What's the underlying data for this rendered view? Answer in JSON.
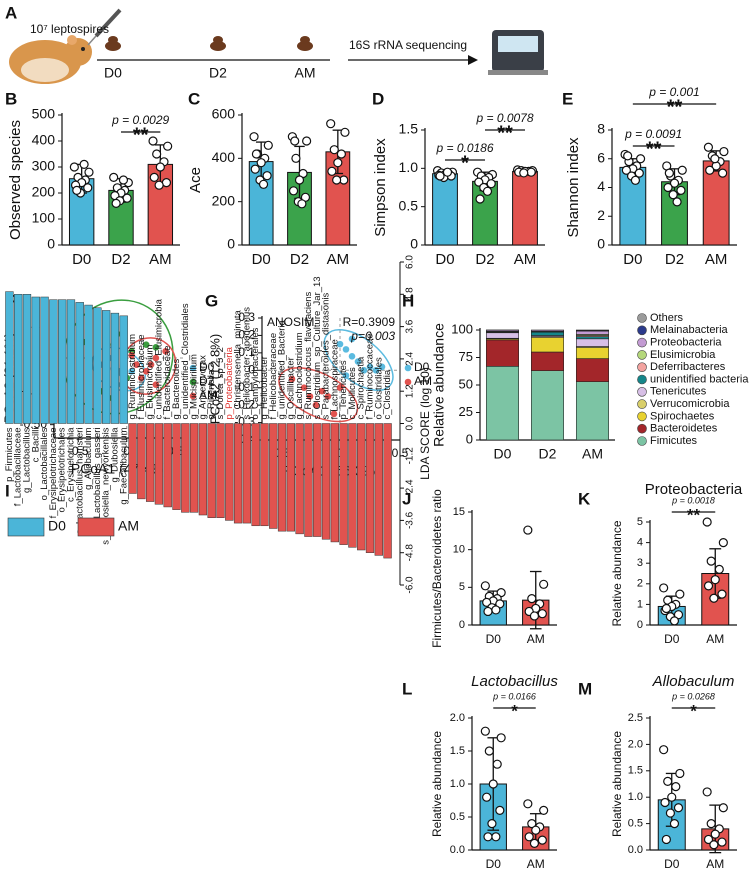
{
  "panel_a": {
    "letter": "A",
    "dose": "10⁷ leptospires",
    "timepoints": [
      "D0",
      "D2",
      "AM"
    ],
    "sequencing": "16S rRNA sequencing"
  },
  "chart_data": [
    {
      "type": "bar",
      "panel": "B",
      "ylabel": "Observed species",
      "categories": [
        "D0",
        "D2",
        "AM"
      ],
      "values": [
        255,
        210,
        310
      ],
      "errors": [
        55,
        45,
        75
      ],
      "points": [
        [
          300,
          280,
          260,
          250,
          240,
          230,
          220,
          200,
          310,
          210
        ],
        [
          260,
          240,
          220,
          210,
          200,
          190,
          180,
          170,
          250,
          160
        ],
        [
          400,
          380,
          350,
          320,
          300,
          260,
          240,
          230
        ]
      ],
      "colors": [
        "#4bb5d8",
        "#3ba34b",
        "#e1534f"
      ],
      "ylim": [
        0,
        500
      ],
      "yticks": [
        0,
        100,
        200,
        300,
        400,
        500
      ],
      "annotations": [
        {
          "text": "p = 0.0029",
          "stars": "**"
        }
      ]
    },
    {
      "type": "bar",
      "panel": "C",
      "ylabel": "Ace",
      "categories": [
        "D0",
        "D2",
        "AM"
      ],
      "values": [
        385,
        335,
        430
      ],
      "errors": [
        90,
        120,
        100
      ],
      "points": [
        [
          500,
          460,
          420,
          400,
          380,
          350,
          320,
          300,
          280,
          420
        ],
        [
          500,
          480,
          400,
          330,
          300,
          250,
          220,
          200,
          190,
          480
        ],
        [
          560,
          520,
          440,
          420,
          380,
          340,
          300,
          300
        ]
      ],
      "colors": [
        "#4bb5d8",
        "#3ba34b",
        "#e1534f"
      ],
      "ylim": [
        0,
        600
      ],
      "yticks": [
        0,
        200,
        400,
        600
      ]
    },
    {
      "type": "bar",
      "panel": "D",
      "ylabel": "Simpson index",
      "categories": [
        "D0",
        "D2",
        "AM"
      ],
      "values": [
        0.93,
        0.83,
        0.96
      ],
      "errors": [
        0.04,
        0.12,
        0.03
      ],
      "points": [
        [
          0.97,
          0.95,
          0.94,
          0.93,
          0.92,
          0.91,
          0.9,
          0.88,
          0.95,
          0.9
        ],
        [
          0.95,
          0.92,
          0.9,
          0.88,
          0.85,
          0.82,
          0.8,
          0.75,
          0.7,
          0.6
        ],
        [
          0.98,
          0.97,
          0.97,
          0.96,
          0.96,
          0.95,
          0.95,
          0.94
        ]
      ],
      "colors": [
        "#4bb5d8",
        "#3ba34b",
        "#e1534f"
      ],
      "ylim": [
        0,
        1.5
      ],
      "yticks": [
        0,
        0.5,
        {
          "value": 1,
          "label": "1.0"
        },
        1.5
      ],
      "annotations": [
        {
          "text": "p = 0.0186",
          "stars": "*"
        },
        {
          "text": "p = 0.0078",
          "stars": "**"
        }
      ]
    },
    {
      "type": "bar",
      "panel": "E",
      "ylabel": "Shannon index",
      "categories": [
        "D0",
        "D2",
        "AM"
      ],
      "values": [
        5.4,
        4.4,
        5.85
      ],
      "errors": [
        0.6,
        0.9,
        0.7
      ],
      "points": [
        [
          6.3,
          6.0,
          5.8,
          5.5,
          5.3,
          5.2,
          5.0,
          4.8,
          4.5,
          6.2
        ],
        [
          5.5,
          5.2,
          4.8,
          4.5,
          4.3,
          4.0,
          3.8,
          3.5,
          3.0,
          5.0
        ],
        [
          6.8,
          6.5,
          6.2,
          5.8,
          5.5,
          5.2,
          5.0,
          6.0
        ]
      ],
      "colors": [
        "#4bb5d8",
        "#3ba34b",
        "#e1534f"
      ],
      "ylim": [
        0,
        8
      ],
      "yticks": [
        0,
        2,
        4,
        6,
        8
      ],
      "annotations": [
        {
          "text": "p = 0.0091",
          "stars": "**"
        },
        {
          "text": "p = 0.001",
          "stars": "**"
        }
      ]
    },
    {
      "type": "scatter",
      "panel": "F",
      "xlabel": "PCoA1 (47.4%)",
      "ylabel": "PCoA2 (21.1%)",
      "xlim": [
        -0.75,
        0.6
      ],
      "ylim": [
        -0.6,
        0.3
      ],
      "xticks": [
        -0.5,
        0,
        0.5
      ],
      "yticks": [
        {
          "value": -0.5,
          "label": "-0.50"
        },
        -0.25,
        0,
        0.25
      ],
      "series": [
        {
          "name": "D0",
          "color": "#5bbbe0",
          "x": [
            -0.25,
            -0.2,
            -0.12,
            -0.05,
            -0.1,
            0,
            0.05,
            -0.18,
            0.1,
            -0.08
          ],
          "y": [
            -0.05,
            -0.08,
            0.02,
            -0.12,
            -0.2,
            -0.15,
            -0.1,
            0.0,
            -0.05,
            -0.1
          ]
        },
        {
          "name": "D2",
          "color": "#3a9e3f",
          "x": [
            -0.45,
            -0.3,
            -0.2,
            -0.1,
            0.05,
            0.2,
            -0.25,
            0,
            0.3,
            -0.15
          ],
          "y": [
            0.12,
            0.15,
            0.1,
            0.18,
            0.05,
            0.1,
            -0.25,
            -0.15,
            0.08,
            -0.3
          ]
        },
        {
          "name": "AM",
          "color": "#e1534f",
          "x": [
            0.1,
            0.15,
            0.25,
            0.3,
            0.2,
            0.4,
            0.05,
            0.3
          ],
          "y": [
            -0.05,
            -0.15,
            -0.05,
            -0.2,
            -0.1,
            0.05,
            0.02,
            0.0
          ]
        }
      ]
    },
    {
      "type": "scatter",
      "panel": "G",
      "xlabel": "PCoA1 (56.3%)",
      "ylabel": "PCoA2 (12.8%)",
      "annotations": [
        "ANOSIM",
        "R=0.3909",
        "p=0.003"
      ],
      "xlim": [
        -0.65,
        0.5
      ],
      "ylim": [
        -0.4,
        0.3
      ],
      "xticks": [
        -0.5,
        0,
        0.5
      ],
      "yticks": [
        -0.4,
        -0.3,
        -0.2,
        -0.1,
        0,
        0.1,
        0.2,
        0.3
      ],
      "series": [
        {
          "name": "D0",
          "color": "#5bbbe0",
          "x": [
            0.0,
            0.05,
            0.1,
            0.15,
            0.2,
            0.25,
            0.3,
            0.1,
            0.35,
            0.05
          ],
          "y": [
            0.15,
            0.12,
            0.18,
            0.05,
            0.0,
            0.02,
            0.0,
            0.08,
            0.02,
            -0.03
          ]
        },
        {
          "name": "AM",
          "color": "#e1534f",
          "x": [
            -0.4,
            -0.3,
            -0.25,
            -0.2,
            -0.1,
            -0.05,
            0.0,
            -0.15
          ],
          "y": [
            -0.05,
            -0.1,
            -0.15,
            -0.2,
            -0.15,
            -0.25,
            -0.1,
            -0.12
          ]
        }
      ]
    },
    {
      "type": "stacked_bar",
      "panel": "H",
      "ylabel": "Relative abundance",
      "categories": [
        "D0",
        "D2",
        "AM"
      ],
      "ylim": [
        0,
        100
      ],
      "yticks": [
        0,
        25,
        50,
        75,
        100
      ],
      "series": [
        {
          "name": "Fimicutes",
          "color": "#7cc4a4",
          "values": [
            67,
            63,
            53
          ]
        },
        {
          "name": "Bacteroidetes",
          "color": "#a3262a",
          "values": [
            24,
            17,
            21
          ]
        },
        {
          "name": "Spirochaetes",
          "color": "#e8d230",
          "values": [
            1,
            13,
            10
          ]
        },
        {
          "name": "Verrucomicrobia",
          "color": "#d9cf6a",
          "values": [
            0.5,
            1,
            1
          ]
        },
        {
          "name": "Tenericutes",
          "color": "#d7bfe6",
          "values": [
            5,
            1,
            7
          ]
        },
        {
          "name": "unidentified bacteria",
          "color": "#15868a",
          "values": [
            0.5,
            3,
            2
          ]
        },
        {
          "name": "Deferribacteres",
          "color": "#f3a3a0",
          "values": [
            0.5,
            0.5,
            1
          ]
        },
        {
          "name": "Elusimicrobia",
          "color": "#b4d77b",
          "values": [
            0.3,
            0.5,
            1
          ]
        },
        {
          "name": "Proteobacteria",
          "color": "#c39bd3",
          "values": [
            1,
            1,
            3
          ]
        },
        {
          "name": "Melainabacteria",
          "color": "#2b3a8c",
          "values": [
            0.1,
            0,
            0.5
          ]
        },
        {
          "name": "Others",
          "color": "#9b9b9b",
          "values": [
            0.1,
            0,
            0.5
          ]
        }
      ]
    },
    {
      "type": "diverging_bar",
      "panel": "I",
      "ylabel": "LDA SCORE (log 10)",
      "emphasis_color": "#e0302c",
      "ylim": [
        -6,
        6
      ],
      "yticks": [
        {
          "value": -6,
          "label": "-6.0"
        },
        -4.8,
        -3.6,
        -2.4,
        -1.2,
        {
          "value": 0,
          "label": "0.0"
        },
        1.2,
        2.4,
        3.6,
        4.8,
        {
          "value": 6,
          "label": "6.0"
        }
      ],
      "series": [
        {
          "name": "D0",
          "color": "#4bb5d8",
          "categories": [
            "p_Firmicutes",
            "f_Lactobacillaceae",
            "g_Lactobacillus",
            "c_Bacilli",
            "o_Lactobacillales",
            "f_Erysipelotrichaceae",
            "o_Erysipelotrichales",
            "c_Erysipelotrichia",
            "s_Lactobacillus_hamsteri",
            "g_Allobaculum",
            "s_Lactobacillus_gasseri",
            "s_Dubosiella_newyorkensis",
            "g_Dubosiella",
            "g_Faecalibaculum"
          ],
          "values": [
            4.9,
            4.8,
            4.8,
            4.7,
            4.7,
            4.6,
            4.6,
            4.6,
            4.5,
            4.4,
            4.3,
            4.2,
            4.1,
            4.0
          ]
        },
        {
          "name": "AM",
          "color": "#e1534f",
          "categories": [
            "g_Ruminiclostridium",
            "f_Elusimicrobiaceae",
            "g_Elusimicrobium",
            "c_unidentified_Elusimicrobia",
            "f_Bacteroidaceae",
            "g_Bacteroides",
            "o_unidentified_Clostridiales",
            "g_Mucispirillum",
            "g_Anaerovorax",
            "g_Rikenella",
            "s_Dorea_sp_5_2",
            "p_Proteobacteria",
            "s_Christensenella_minuta",
            "s_Helicobacter_apodemus",
            "o_Campylobacterales",
            "g_Helicobacter",
            "f_Helicobacteraceae",
            "g_unidentified_Bacteria",
            "g_Oscillibacter",
            "g_Lachnoclostridium",
            "s_Ruminococcus_flavefaciens",
            "s_Clostridium_sp_Culture_Jar_13",
            "s_Parabacteroides_distasonis",
            "f_Lachnospiraceae",
            "p_Tenericutes",
            "c_Mollicutes",
            "c_Spirochaetia",
            "f_Ruminococcaceae",
            "o_Clostridiales",
            "c_Clostridia"
          ],
          "values": [
            -2.6,
            -2.8,
            -2.9,
            -3.0,
            -3.1,
            -3.2,
            -3.3,
            -3.3,
            -3.4,
            -3.5,
            -3.5,
            -3.6,
            -3.7,
            -3.7,
            -3.8,
            -3.8,
            -3.9,
            -4.0,
            -4.0,
            -4.1,
            -4.2,
            -4.2,
            -4.3,
            -4.4,
            -4.5,
            -4.6,
            -4.7,
            -4.8,
            -4.9,
            -5.0
          ]
        }
      ]
    },
    {
      "type": "bar",
      "panel": "J",
      "ylabel": "Firmicutes/Bacteroidetes ratio",
      "categories": [
        "D0",
        "AM"
      ],
      "values": [
        3.2,
        3.3
      ],
      "errors": [
        1.3,
        3.8
      ],
      "points": [
        [
          5.2,
          4.3,
          3.8,
          3.5,
          3.2,
          3.0,
          2.8,
          2.3,
          2.0,
          1.8
        ],
        [
          12.6,
          5.4,
          3.5,
          2.8,
          2.2,
          1.8,
          1.5,
          1.2
        ]
      ],
      "colors": [
        "#4bb5d8",
        "#e1534f"
      ],
      "ylim": [
        0,
        15
      ],
      "yticks": [
        0,
        5,
        10,
        15
      ]
    },
    {
      "type": "bar",
      "panel": "K",
      "title": "Proteobacteria",
      "ylabel": "Relative abundance",
      "categories": [
        "D0",
        "AM"
      ],
      "values": [
        0.9,
        2.5
      ],
      "errors": [
        0.5,
        1.2
      ],
      "points": [
        [
          1.8,
          1.5,
          1.2,
          1.0,
          0.9,
          0.7,
          0.5,
          0.4,
          0.2,
          0.8
        ],
        [
          5.0,
          4.0,
          3.1,
          2.7,
          2.2,
          1.9,
          1.5,
          1.3
        ]
      ],
      "colors": [
        "#4bb5d8",
        "#e1534f"
      ],
      "ylim": [
        0,
        5
      ],
      "yticks": [
        0,
        1,
        2,
        3,
        4,
        5
      ],
      "annotations": [
        {
          "text": "p = 0.0018",
          "stars": "**"
        }
      ]
    },
    {
      "type": "bar",
      "panel": "L",
      "title": "Lactobacillus",
      "title_style": "italic",
      "ylabel": "Relative abundance",
      "categories": [
        "D0",
        "AM"
      ],
      "values": [
        1.0,
        0.35
      ],
      "errors": [
        0.7,
        0.2
      ],
      "points": [
        [
          1.8,
          1.7,
          1.5,
          1.3,
          1.0,
          0.8,
          0.6,
          0.4,
          0.2,
          0.2
        ],
        [
          0.7,
          0.6,
          0.4,
          0.35,
          0.3,
          0.2,
          0.15,
          0.1
        ]
      ],
      "colors": [
        "#4bb5d8",
        "#e1534f"
      ],
      "ylim": [
        0,
        2
      ],
      "yticks": [
        {
          "value": 0,
          "label": "0.0"
        },
        0.5,
        {
          "value": 1,
          "label": "1.0"
        },
        1.5,
        {
          "value": 2,
          "label": "2.0"
        }
      ],
      "annotations": [
        {
          "text": "p = 0.0166",
          "stars": "*"
        }
      ]
    },
    {
      "type": "bar",
      "panel": "M",
      "title": "Allobaculum",
      "title_style": "italic",
      "ylabel": "Relative abundance",
      "categories": [
        "D0",
        "AM"
      ],
      "values": [
        0.95,
        0.4
      ],
      "errors": [
        0.5,
        0.45
      ],
      "points": [
        [
          1.9,
          1.45,
          1.3,
          1.2,
          1.0,
          0.9,
          0.8,
          0.7,
          0.5,
          0.2
        ],
        [
          1.1,
          0.8,
          0.5,
          0.4,
          0.3,
          0.2,
          0.15,
          0.1
        ]
      ],
      "colors": [
        "#4bb5d8",
        "#e1534f"
      ],
      "ylim": [
        0,
        2.5
      ],
      "yticks": [
        {
          "value": 0,
          "label": "0.0"
        },
        0.5,
        {
          "value": 1,
          "label": "1.0"
        },
        1.5,
        {
          "value": 2,
          "label": "2.0"
        },
        2.5
      ],
      "annotations": [
        {
          "text": "p = 0.0268",
          "stars": "*"
        }
      ]
    }
  ]
}
